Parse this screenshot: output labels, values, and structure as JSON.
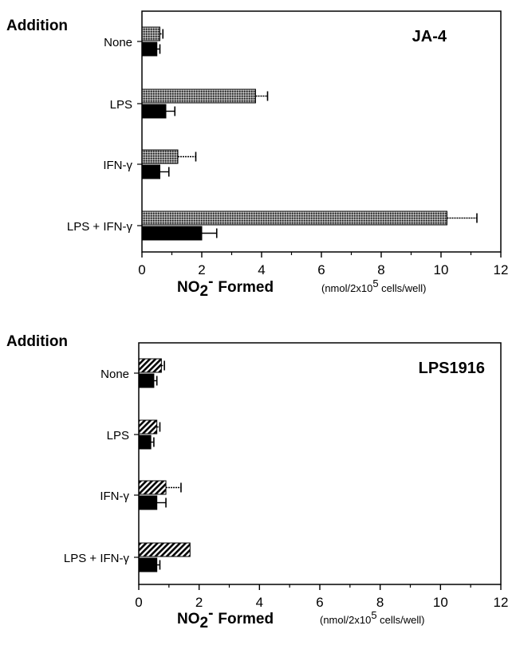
{
  "chart_data": [
    {
      "type": "bar",
      "title": "JA-4",
      "ylabel": "Addition",
      "xlabel": "NO2- Formed",
      "xlabel_parts": {
        "main": "NO",
        "sub": "2",
        "sup": "-",
        "word": "Formed"
      },
      "xunit": {
        "pre": "(nmol/2x10",
        "sup": "5",
        "post": " cells/well)"
      },
      "xlim": [
        0,
        12
      ],
      "xticks": [
        "0",
        "2",
        "4",
        "6",
        "8",
        "10",
        "12"
      ],
      "categories": [
        "None",
        "LPS",
        "IFN-γ",
        "LPS + IFN-γ"
      ],
      "orientation": "horizontal",
      "series": [
        {
          "pattern": "dotted-gray",
          "values": [
            0.6,
            3.8,
            1.2,
            10.2
          ],
          "errors": [
            0.1,
            0.4,
            0.6,
            1.0
          ]
        },
        {
          "pattern": "solid-black",
          "values": [
            0.5,
            0.8,
            0.6,
            2.0
          ],
          "errors": [
            0.1,
            0.3,
            0.3,
            0.5
          ]
        }
      ]
    },
    {
      "type": "bar",
      "title": "LPS1916",
      "ylabel": "Addition",
      "xlabel": "NO2- Formed",
      "xlabel_parts": {
        "main": "NO",
        "sub": "2",
        "sup": "-",
        "word": "Formed"
      },
      "xunit": {
        "pre": "(nmol/2x10",
        "sup": "5",
        "post": " cells/well)"
      },
      "xlim": [
        0,
        12
      ],
      "xticks": [
        "0",
        "2",
        "4",
        "6",
        "8",
        "10",
        "12"
      ],
      "categories": [
        "None",
        "LPS",
        "IFN-γ",
        "LPS + IFN-γ"
      ],
      "orientation": "horizontal",
      "series": [
        {
          "pattern": "hatched",
          "values": [
            0.75,
            0.6,
            0.9,
            1.7
          ],
          "errors": [
            0.1,
            0.1,
            0.5,
            0.0
          ]
        },
        {
          "pattern": "solid-black",
          "values": [
            0.5,
            0.4,
            0.6,
            0.6
          ],
          "errors": [
            0.1,
            0.1,
            0.3,
            0.1
          ]
        }
      ]
    }
  ]
}
